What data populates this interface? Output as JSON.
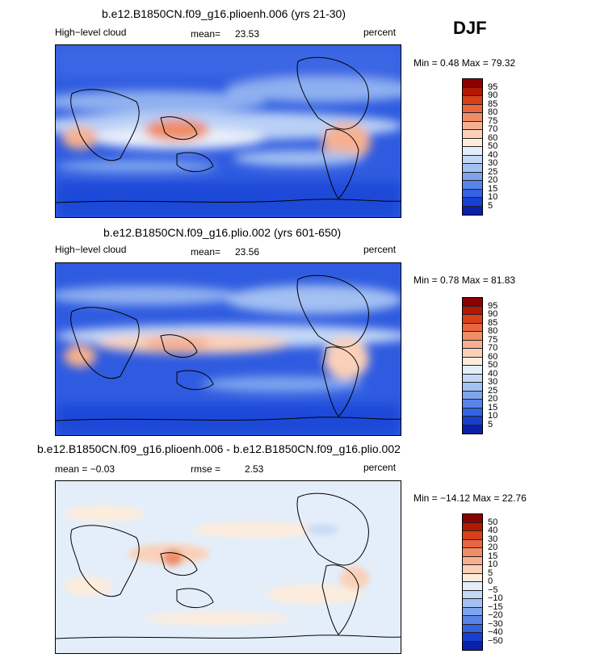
{
  "season": "DJF",
  "panels": [
    {
      "title": "b.e12.B1850CN.f09_g16.plioenh.006 (yrs 21-30)",
      "left_label": "High−level cloud",
      "mean_label": "mean=",
      "mean_value": "23.53",
      "right_label": "percent",
      "minmax_text": "Min =    0.48 Max =   79.32",
      "colorbar_labels": [
        "95",
        "90",
        "85",
        "80",
        "75",
        "70",
        "60",
        "50",
        "40",
        "30",
        "25",
        "20",
        "15",
        "10",
        "5"
      ],
      "colorbar_colors": [
        "#8b0000",
        "#b51800",
        "#d9401a",
        "#ea6640",
        "#f08c66",
        "#f6b090",
        "#fbd0b8",
        "#fdecdc",
        "#e3eefa",
        "#c4d8f6",
        "#a3c0f2",
        "#7ea4ee",
        "#5884ea",
        "#3362e2",
        "#1640d2",
        "#0a20a8"
      ]
    },
    {
      "title": "b.e12.B1850CN.f09_g16.plio.002 (yrs 601-650)",
      "left_label": "High−level cloud",
      "mean_label": "mean=",
      "mean_value": "23.56",
      "right_label": "percent",
      "minmax_text": "Min =    0.78 Max =   81.83",
      "colorbar_labels": [
        "95",
        "90",
        "85",
        "80",
        "75",
        "70",
        "60",
        "50",
        "40",
        "30",
        "25",
        "20",
        "15",
        "10",
        "5"
      ],
      "colorbar_colors": [
        "#8b0000",
        "#b51800",
        "#d9401a",
        "#ea6640",
        "#f08c66",
        "#f6b090",
        "#fbd0b8",
        "#fdecdc",
        "#e3eefa",
        "#c4d8f6",
        "#a3c0f2",
        "#7ea4ee",
        "#5884ea",
        "#3362e2",
        "#1640d2",
        "#0a20a8"
      ]
    },
    {
      "title": "b.e12.B1850CN.f09_g16.plioenh.006 - b.e12.B1850CN.f09_g16.plio.002",
      "left_label": "mean =   −0.03",
      "mean_label": "rmse =",
      "mean_value": "2.53",
      "right_label": "percent",
      "minmax_text": "Min = −14.12 Max =   22.76",
      "colorbar_labels": [
        "50",
        "40",
        "30",
        "20",
        "15",
        "10",
        "5",
        "0",
        "−5",
        "−10",
        "−15",
        "−20",
        "−30",
        "−40",
        "−50"
      ],
      "colorbar_colors": [
        "#8b0000",
        "#b51800",
        "#d9401a",
        "#ea6640",
        "#f08c66",
        "#f6b090",
        "#fbd0b8",
        "#fdecdc",
        "#e3eefa",
        "#c4d8f6",
        "#a3c0f2",
        "#7ea4ee",
        "#5884ea",
        "#3362e2",
        "#1640d2",
        "#0a20a8"
      ]
    }
  ]
}
